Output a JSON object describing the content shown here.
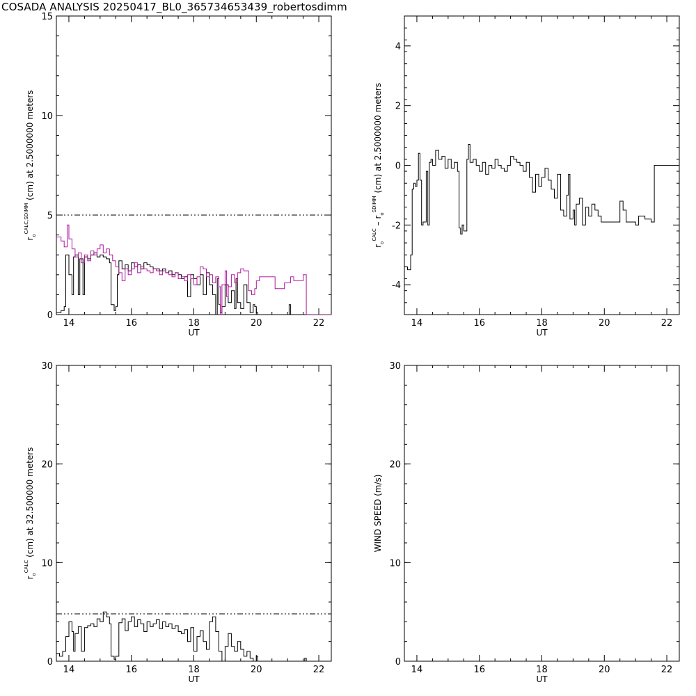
{
  "title": "COSADA ANALYSIS 20250417_BL0_365734653439_robertosdimm",
  "chart_data": [
    {
      "id": "top-left",
      "type": "line",
      "step": true,
      "xlabel": "UT",
      "ylabel_parts": {
        "base": "r",
        "sub": "o",
        "sup": "CALC,SDIMM",
        "rest": "(cm)  at  2.5000000 meters"
      },
      "xlim": [
        13.6,
        22.4
      ],
      "ylim": [
        0,
        15
      ],
      "xticks": [
        14,
        16,
        18,
        20,
        22
      ],
      "yticks": [
        0,
        5,
        10,
        15
      ],
      "reference_line": 5.0,
      "series": [
        {
          "color": "#000000",
          "x": [
            13.6,
            13.75,
            13.85,
            13.9,
            14.0,
            14.1,
            14.15,
            14.2,
            14.3,
            14.35,
            14.45,
            14.5,
            14.6,
            14.7,
            14.8,
            14.9,
            15.0,
            15.1,
            15.2,
            15.3,
            15.35,
            15.45,
            15.5,
            15.55,
            15.6,
            15.7,
            15.8,
            15.9,
            16.0,
            16.1,
            16.2,
            16.3,
            16.4,
            16.5,
            16.6,
            16.7,
            16.8,
            16.9,
            17.0,
            17.1,
            17.2,
            17.3,
            17.4,
            17.5,
            17.6,
            17.7,
            17.8,
            17.9,
            18.0,
            18.1,
            18.2,
            18.3,
            18.4,
            18.5,
            18.6,
            18.7,
            18.75,
            18.8,
            18.85,
            18.9,
            19.0,
            19.1,
            19.2,
            19.3,
            19.35,
            19.4,
            19.5,
            19.6,
            19.7,
            19.8,
            19.9,
            19.95,
            20.0,
            20.05,
            21.0,
            21.05,
            21.1
          ],
          "y": [
            0.1,
            0.2,
            0.4,
            3.0,
            2.0,
            1.0,
            2.9,
            3.0,
            1.0,
            2.8,
            1.0,
            2.9,
            2.8,
            3.0,
            3.1,
            2.9,
            3.0,
            2.9,
            2.8,
            2.6,
            0.5,
            0.2,
            0.4,
            2.0,
            2.7,
            2.3,
            2.5,
            2.2,
            2.6,
            2.4,
            2.5,
            2.3,
            2.6,
            2.5,
            2.4,
            2.3,
            2.3,
            2.2,
            2.3,
            2.1,
            2.2,
            2.0,
            2.1,
            2.0,
            1.8,
            1.9,
            0.9,
            2.0,
            1.8,
            1.5,
            2.0,
            1.0,
            2.1,
            1.5,
            1.0,
            0.0,
            1.8,
            0.5,
            0.1,
            0.4,
            1.5,
            0.6,
            1.2,
            0.3,
            1.8,
            0.6,
            0.3,
            1.5,
            0.6,
            0.1,
            0.5,
            0.4,
            0.1,
            0.0,
            0.0,
            0.5,
            0.0
          ]
        },
        {
          "color": "#b0169e",
          "x": [
            13.6,
            13.75,
            13.85,
            13.95,
            14.0,
            14.1,
            14.2,
            14.3,
            14.4,
            14.5,
            14.6,
            14.7,
            14.8,
            14.9,
            15.0,
            15.1,
            15.2,
            15.3,
            15.4,
            15.5,
            15.6,
            15.7,
            15.8,
            15.9,
            16.0,
            16.1,
            16.2,
            16.3,
            16.4,
            16.5,
            16.6,
            16.7,
            16.8,
            16.9,
            17.0,
            17.1,
            17.2,
            17.3,
            17.4,
            17.5,
            17.6,
            17.7,
            17.8,
            17.9,
            18.0,
            18.1,
            18.2,
            18.3,
            18.4,
            18.5,
            18.6,
            18.7,
            18.8,
            18.85,
            18.9,
            19.0,
            19.05,
            19.1,
            19.2,
            19.3,
            19.4,
            19.5,
            19.6,
            19.75,
            19.85,
            19.95,
            20.0,
            20.1,
            20.6,
            20.9,
            21.0,
            21.1,
            21.2,
            21.5,
            21.6
          ],
          "y": [
            3.9,
            3.7,
            3.4,
            4.5,
            3.8,
            3.3,
            2.9,
            3.1,
            2.6,
            3.0,
            2.7,
            3.2,
            3.0,
            3.3,
            3.5,
            3.1,
            3.3,
            3.0,
            2.7,
            2.4,
            2.1,
            1.7,
            2.3,
            2.0,
            2.3,
            2.6,
            2.1,
            2.4,
            2.3,
            2.2,
            2.1,
            2.3,
            2.2,
            2.0,
            2.2,
            2.1,
            2.0,
            1.9,
            2.1,
            1.8,
            1.9,
            1.7,
            2.0,
            1.8,
            1.5,
            1.9,
            2.4,
            2.3,
            1.9,
            2.0,
            1.6,
            1.9,
            1.4,
            0.0,
            1.5,
            2.2,
            0.9,
            1.4,
            2.0,
            1.6,
            2.1,
            2.3,
            2.2,
            1.2,
            1.0,
            1.3,
            1.7,
            1.9,
            1.3,
            1.6,
            1.6,
            1.9,
            1.7,
            2.0,
            0.0
          ]
        }
      ]
    },
    {
      "id": "top-right",
      "type": "line",
      "step": true,
      "xlabel": "UT",
      "ylabel_parts": {
        "base": "r",
        "sub": "o",
        "sup": "CALC",
        "mid": "– r",
        "sub2": "o",
        "sup2": "SDIMM",
        "rest": "(cm) at 2.5000000 meters"
      },
      "xlim": [
        13.6,
        22.4
      ],
      "ylim": [
        -5,
        5
      ],
      "xticks": [
        14,
        16,
        18,
        20,
        22
      ],
      "yticks": [
        -4,
        -2,
        0,
        2,
        4
      ],
      "series": [
        {
          "color": "#000000",
          "x": [
            13.6,
            13.7,
            13.8,
            13.85,
            13.9,
            13.95,
            14.0,
            14.05,
            14.1,
            14.15,
            14.2,
            14.3,
            14.35,
            14.4,
            14.45,
            14.5,
            14.6,
            14.7,
            14.8,
            14.9,
            15.0,
            15.1,
            15.2,
            15.3,
            15.35,
            15.4,
            15.45,
            15.5,
            15.6,
            15.65,
            15.7,
            15.8,
            15.9,
            16.0,
            16.1,
            16.2,
            16.3,
            16.4,
            16.5,
            16.6,
            16.7,
            16.8,
            16.9,
            17.0,
            17.1,
            17.2,
            17.3,
            17.4,
            17.5,
            17.6,
            17.7,
            17.8,
            17.9,
            18.0,
            18.1,
            18.2,
            18.3,
            18.4,
            18.5,
            18.6,
            18.7,
            18.8,
            18.85,
            18.9,
            19.0,
            19.05,
            19.1,
            19.2,
            19.3,
            19.4,
            19.5,
            19.6,
            19.7,
            19.8,
            19.9,
            20.0,
            20.5,
            20.6,
            20.7,
            21.0,
            21.1,
            21.3,
            21.5,
            21.6
          ],
          "y": [
            -3.4,
            -3.5,
            -3.0,
            -0.8,
            -0.6,
            -0.7,
            -0.5,
            0.4,
            -0.5,
            -2.0,
            -1.9,
            -0.2,
            -2.0,
            0.1,
            0.2,
            0.0,
            0.5,
            0.2,
            0.3,
            -0.1,
            0.2,
            -0.1,
            0.1,
            -0.2,
            -2.1,
            -2.3,
            -2.0,
            -2.2,
            0.2,
            0.7,
            0.1,
            0.2,
            0.0,
            -0.2,
            0.1,
            -0.3,
            0.0,
            -0.1,
            0.2,
            0.0,
            -0.1,
            -0.2,
            0.0,
            0.3,
            0.2,
            0.1,
            0.0,
            -0.2,
            0.1,
            -0.4,
            -0.9,
            -0.3,
            -0.7,
            -0.4,
            -0.1,
            -0.5,
            -0.8,
            -1.1,
            -0.3,
            -1.5,
            -1.7,
            -1.0,
            -0.3,
            -1.8,
            -1.5,
            -2.0,
            -1.3,
            -1.1,
            -2.0,
            -1.4,
            -1.7,
            -1.3,
            -1.5,
            -1.7,
            -1.9,
            -1.9,
            -1.2,
            -1.5,
            -1.9,
            -2.0,
            -1.7,
            -1.8,
            -1.9,
            0.0
          ]
        }
      ]
    },
    {
      "id": "bottom-left",
      "type": "line",
      "step": true,
      "xlabel": "UT",
      "ylabel_parts": {
        "base": "r",
        "sub": "o",
        "sup": "CALC",
        "rest": "(cm)  at  32.500000 meters"
      },
      "xlim": [
        13.6,
        22.4
      ],
      "ylim": [
        0,
        30
      ],
      "xticks": [
        14,
        16,
        18,
        20,
        22
      ],
      "yticks": [
        0,
        10,
        20,
        30
      ],
      "reference_line": 4.8,
      "series": [
        {
          "color": "#000000",
          "x": [
            13.6,
            13.7,
            13.8,
            13.9,
            14.0,
            14.1,
            14.15,
            14.2,
            14.3,
            14.4,
            14.5,
            14.6,
            14.7,
            14.8,
            14.9,
            15.0,
            15.1,
            15.2,
            15.3,
            15.35,
            15.45,
            15.5,
            15.6,
            15.7,
            15.8,
            15.9,
            16.0,
            16.1,
            16.2,
            16.3,
            16.4,
            16.5,
            16.6,
            16.7,
            16.8,
            16.9,
            17.0,
            17.1,
            17.2,
            17.3,
            17.4,
            17.5,
            17.6,
            17.7,
            17.8,
            17.9,
            18.0,
            18.1,
            18.2,
            18.3,
            18.4,
            18.5,
            18.6,
            18.7,
            18.8,
            18.9,
            19.0,
            19.1,
            19.2,
            19.3,
            19.4,
            19.5,
            19.6,
            19.7,
            19.8,
            19.9,
            20.0,
            20.05,
            21.5,
            21.55,
            21.6
          ],
          "y": [
            0.8,
            0.5,
            1.0,
            2.5,
            4.0,
            3.0,
            1.0,
            2.8,
            3.5,
            1.0,
            3.4,
            3.6,
            3.8,
            3.5,
            4.3,
            4.0,
            5.0,
            4.5,
            3.8,
            0.5,
            0.2,
            0.5,
            3.9,
            4.3,
            3.1,
            4.0,
            4.5,
            3.5,
            4.2,
            3.8,
            3.0,
            4.0,
            3.5,
            3.8,
            4.2,
            3.3,
            4.0,
            3.5,
            3.8,
            3.3,
            3.6,
            3.0,
            2.8,
            3.2,
            2.0,
            3.4,
            1.0,
            2.5,
            3.1,
            2.0,
            1.2,
            4.0,
            4.5,
            3.0,
            1.0,
            0.0,
            1.5,
            2.8,
            1.5,
            1.0,
            2.0,
            1.2,
            0.5,
            1.0,
            0.3,
            0.0,
            0.5,
            0.0,
            0.0,
            0.3,
            0.0
          ]
        }
      ]
    },
    {
      "id": "bottom-right",
      "type": "line",
      "step": true,
      "xlabel": "UT",
      "ylabel": "WIND SPEED (m/s)",
      "xlim": [
        13.6,
        22.4
      ],
      "ylim": [
        0,
        30
      ],
      "xticks": [
        14,
        16,
        18,
        20,
        22
      ],
      "yticks": [
        0,
        10,
        20,
        30
      ],
      "series": []
    }
  ]
}
